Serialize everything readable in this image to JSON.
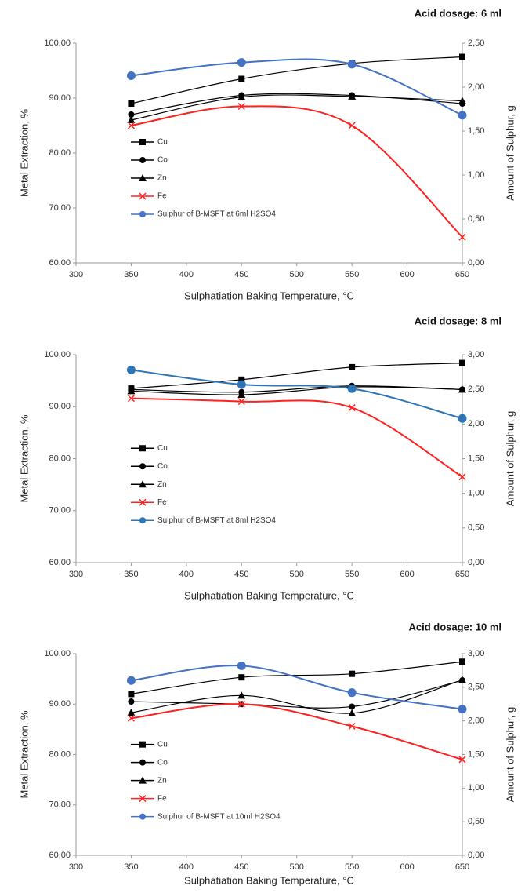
{
  "chart_data": [
    {
      "type": "line",
      "title": "Acid dosage: 6 ml",
      "x_label": "Sulphatiation Baking Temperature, °C",
      "y_label": "Metal Extraction, %",
      "y2_label": "Amount of Sulphur, g",
      "x": [
        350,
        450,
        550,
        650
      ],
      "xlim": [
        300,
        650
      ],
      "xticks": [
        300,
        350,
        400,
        450,
        500,
        550,
        600,
        650
      ],
      "ylim": [
        60,
        100
      ],
      "yticks": [
        {
          "value": 60,
          "label": "60,00"
        },
        {
          "value": 70,
          "label": "70,00"
        },
        {
          "value": 80,
          "label": "80,00"
        },
        {
          "value": 90,
          "label": "90,00"
        },
        {
          "value": 100,
          "label": "100,00"
        }
      ],
      "y2lim": [
        0,
        2.5
      ],
      "y2ticks": [
        {
          "value": 0,
          "label": "0,00"
        },
        {
          "value": 0.5,
          "label": "0,50"
        },
        {
          "value": 1,
          "label": "1,00"
        },
        {
          "value": 1.5,
          "label": "1,50"
        },
        {
          "value": 2,
          "label": "2,00"
        },
        {
          "value": 2.5,
          "label": "2,50"
        }
      ],
      "series": [
        {
          "name": "Cu",
          "color": "#000000",
          "marker": "square",
          "values": [
            89,
            93.5,
            96.3,
            97.5
          ]
        },
        {
          "name": "Co",
          "color": "#000000",
          "marker": "circle",
          "values": [
            87,
            90.5,
            90.5,
            89
          ]
        },
        {
          "name": "Zn",
          "color": "#000000",
          "marker": "triangle",
          "values": [
            86,
            90.2,
            90.3,
            89.5
          ]
        },
        {
          "name": "Fe",
          "color": "#ff2020",
          "marker": "x",
          "values": [
            85,
            88.5,
            85,
            64.7
          ]
        },
        {
          "name": "Sulphur of B-MSFT at 6ml H2SO4",
          "color": "#4472c4",
          "marker": "circle",
          "axis": "y2",
          "values": [
            2.13,
            2.28,
            2.26,
            1.68
          ]
        }
      ]
    },
    {
      "type": "line",
      "title": "Acid dosage: 8 ml",
      "x_label": "Sulphatiation Baking Temperature, °C",
      "y_label": "Metal Extraction, %",
      "y2_label": "Amount of Sulphur, g",
      "x": [
        350,
        450,
        550,
        650
      ],
      "xlim": [
        300,
        650
      ],
      "xticks": [
        300,
        350,
        400,
        450,
        500,
        550,
        600,
        650
      ],
      "ylim": [
        60,
        100
      ],
      "yticks": [
        {
          "value": 60,
          "label": "60,00"
        },
        {
          "value": 70,
          "label": "70,00"
        },
        {
          "value": 80,
          "label": "80,00"
        },
        {
          "value": 90,
          "label": "90,00"
        },
        {
          "value": 100,
          "label": "100,00"
        }
      ],
      "y2lim": [
        0,
        3
      ],
      "y2ticks": [
        {
          "value": 0,
          "label": "0,00"
        },
        {
          "value": 0.5,
          "label": "0,50"
        },
        {
          "value": 1,
          "label": "1,00"
        },
        {
          "value": 1.5,
          "label": "1,50"
        },
        {
          "value": 2,
          "label": "2,00"
        },
        {
          "value": 2.5,
          "label": "2,50"
        },
        {
          "value": 3,
          "label": "3,00"
        }
      ],
      "series": [
        {
          "name": "Cu",
          "color": "#000000",
          "marker": "square",
          "values": [
            93.5,
            95.2,
            97.6,
            98.4
          ]
        },
        {
          "name": "Co",
          "color": "#000000",
          "marker": "circle",
          "values": [
            93.3,
            92.8,
            94,
            93.3
          ]
        },
        {
          "name": "Zn",
          "color": "#000000",
          "marker": "triangle",
          "values": [
            93,
            92.3,
            93.8,
            93.3
          ]
        },
        {
          "name": "Fe",
          "color": "#ff2020",
          "marker": "x",
          "values": [
            91.6,
            91,
            89.8,
            76.5
          ]
        },
        {
          "name": "Sulphur of B-MSFT at 8ml H2SO4",
          "color": "#2e75b6",
          "marker": "circle",
          "axis": "y2",
          "values": [
            2.78,
            2.57,
            2.51,
            2.08
          ]
        }
      ]
    },
    {
      "type": "line",
      "title": "Acid dosage: 10 ml",
      "x_label": "Sulphatiation Baking Temperature, °C",
      "y_label": "Metal Extraction, %",
      "y2_label": "Amount of Sulphur, g",
      "x": [
        350,
        450,
        550,
        650
      ],
      "xlim": [
        300,
        650
      ],
      "xticks": [
        300,
        350,
        400,
        450,
        500,
        550,
        600,
        650
      ],
      "ylim": [
        60,
        100
      ],
      "yticks": [
        {
          "value": 60,
          "label": "60,00"
        },
        {
          "value": 70,
          "label": "70,00"
        },
        {
          "value": 80,
          "label": "80,00"
        },
        {
          "value": 90,
          "label": "90,00"
        },
        {
          "value": 100,
          "label": "100,00"
        }
      ],
      "y2lim": [
        0,
        3
      ],
      "y2ticks": [
        {
          "value": 0,
          "label": "0,00"
        },
        {
          "value": 0.5,
          "label": "0,50"
        },
        {
          "value": 1,
          "label": "1,00"
        },
        {
          "value": 1.5,
          "label": "1,50"
        },
        {
          "value": 2,
          "label": "2,00"
        },
        {
          "value": 2.5,
          "label": "2,50"
        },
        {
          "value": 3,
          "label": "3,00"
        }
      ],
      "series": [
        {
          "name": "Cu",
          "color": "#000000",
          "marker": "square",
          "values": [
            92,
            95.3,
            96,
            98.4
          ]
        },
        {
          "name": "Co",
          "color": "#000000",
          "marker": "circle",
          "values": [
            90.5,
            90,
            89.5,
            94.7
          ]
        },
        {
          "name": "Zn",
          "color": "#000000",
          "marker": "triangle",
          "values": [
            88.3,
            91.7,
            88.2,
            94.8
          ]
        },
        {
          "name": "Fe",
          "color": "#ff2020",
          "marker": "x",
          "values": [
            87.2,
            90,
            85.6,
            79
          ]
        },
        {
          "name": "Sulphur of B-MSFT at 10ml H2SO4",
          "color": "#4472c4",
          "marker": "circle",
          "axis": "y2",
          "values": [
            2.6,
            2.82,
            2.42,
            2.175
          ]
        }
      ]
    }
  ]
}
